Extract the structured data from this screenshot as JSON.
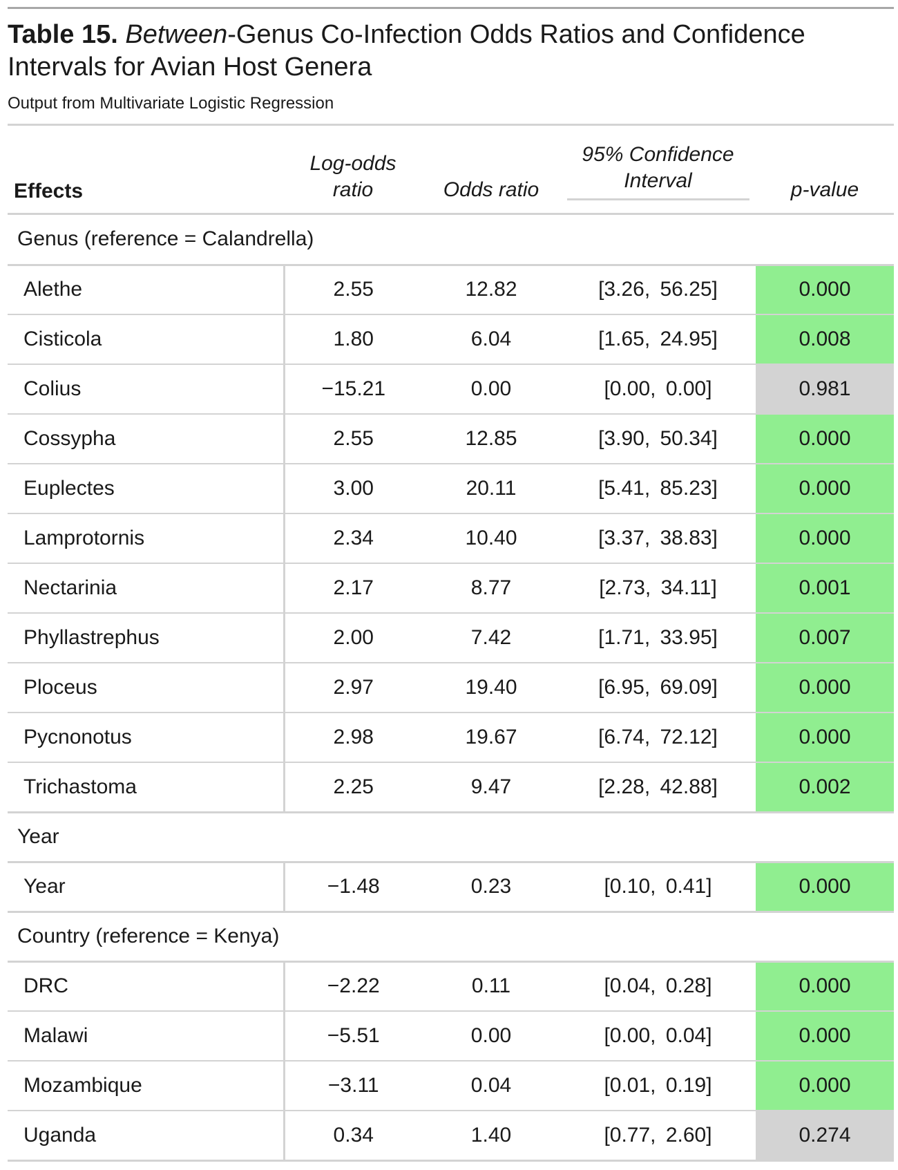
{
  "title": {
    "table_label": "Table 15.",
    "title_italic": "Between",
    "title_rest": "-Genus Co-Infection Odds Ratios and Confidence Intervals for Avian Host Genera",
    "subtitle": "Output from Multivariate Logistic Regression"
  },
  "columns": {
    "effects": "Effects",
    "log_odds_line1": "Log-odds",
    "log_odds_line2": "ratio",
    "odds_ratio": "Odds ratio",
    "ci_spanner_line1": "95% Confidence",
    "ci_spanner_line2": "Interval",
    "p_value": "p-value"
  },
  "colors": {
    "significant": "#90ee90",
    "not_significant": "#d3d3d3",
    "rule": "#d3d3d3"
  },
  "groups": [
    {
      "label": "Genus (reference = Calandrella)",
      "rows": [
        {
          "effect": "Alethe",
          "log_odds": "2.55",
          "odds_ratio": "12.82",
          "ci": "[3.26, 56.25]",
          "p": "0.000",
          "significant": true
        },
        {
          "effect": "Cisticola",
          "log_odds": "1.80",
          "odds_ratio": "6.04",
          "ci": "[1.65, 24.95]",
          "p": "0.008",
          "significant": true
        },
        {
          "effect": "Colius",
          "log_odds": "−15.21",
          "odds_ratio": "0.00",
          "ci": "[0.00, 0.00]",
          "p": "0.981",
          "significant": false
        },
        {
          "effect": "Cossypha",
          "log_odds": "2.55",
          "odds_ratio": "12.85",
          "ci": "[3.90, 50.34]",
          "p": "0.000",
          "significant": true
        },
        {
          "effect": "Euplectes",
          "log_odds": "3.00",
          "odds_ratio": "20.11",
          "ci": "[5.41, 85.23]",
          "p": "0.000",
          "significant": true
        },
        {
          "effect": "Lamprotornis",
          "log_odds": "2.34",
          "odds_ratio": "10.40",
          "ci": "[3.37, 38.83]",
          "p": "0.000",
          "significant": true
        },
        {
          "effect": "Nectarinia",
          "log_odds": "2.17",
          "odds_ratio": "8.77",
          "ci": "[2.73, 34.11]",
          "p": "0.001",
          "significant": true
        },
        {
          "effect": "Phyllastrephus",
          "log_odds": "2.00",
          "odds_ratio": "7.42",
          "ci": "[1.71, 33.95]",
          "p": "0.007",
          "significant": true
        },
        {
          "effect": "Ploceus",
          "log_odds": "2.97",
          "odds_ratio": "19.40",
          "ci": "[6.95, 69.09]",
          "p": "0.000",
          "significant": true
        },
        {
          "effect": "Pycnonotus",
          "log_odds": "2.98",
          "odds_ratio": "19.67",
          "ci": "[6.74, 72.12]",
          "p": "0.000",
          "significant": true
        },
        {
          "effect": "Trichastoma",
          "log_odds": "2.25",
          "odds_ratio": "9.47",
          "ci": "[2.28, 42.88]",
          "p": "0.002",
          "significant": true
        }
      ]
    },
    {
      "label": "Year",
      "rows": [
        {
          "effect": "Year",
          "log_odds": "−1.48",
          "odds_ratio": "0.23",
          "ci": "[0.10, 0.41]",
          "p": "0.000",
          "significant": true
        }
      ]
    },
    {
      "label": "Country (reference = Kenya)",
      "rows": [
        {
          "effect": "DRC",
          "log_odds": "−2.22",
          "odds_ratio": "0.11",
          "ci": "[0.04, 0.28]",
          "p": "0.000",
          "significant": true
        },
        {
          "effect": "Malawi",
          "log_odds": "−5.51",
          "odds_ratio": "0.00",
          "ci": "[0.00, 0.04]",
          "p": "0.000",
          "significant": true
        },
        {
          "effect": "Mozambique",
          "log_odds": "−3.11",
          "odds_ratio": "0.04",
          "ci": "[0.01, 0.19]",
          "p": "0.000",
          "significant": true
        },
        {
          "effect": "Uganda",
          "log_odds": "0.34",
          "odds_ratio": "1.40",
          "ci": "[0.77, 2.60]",
          "p": "0.274",
          "significant": false
        }
      ]
    }
  ]
}
